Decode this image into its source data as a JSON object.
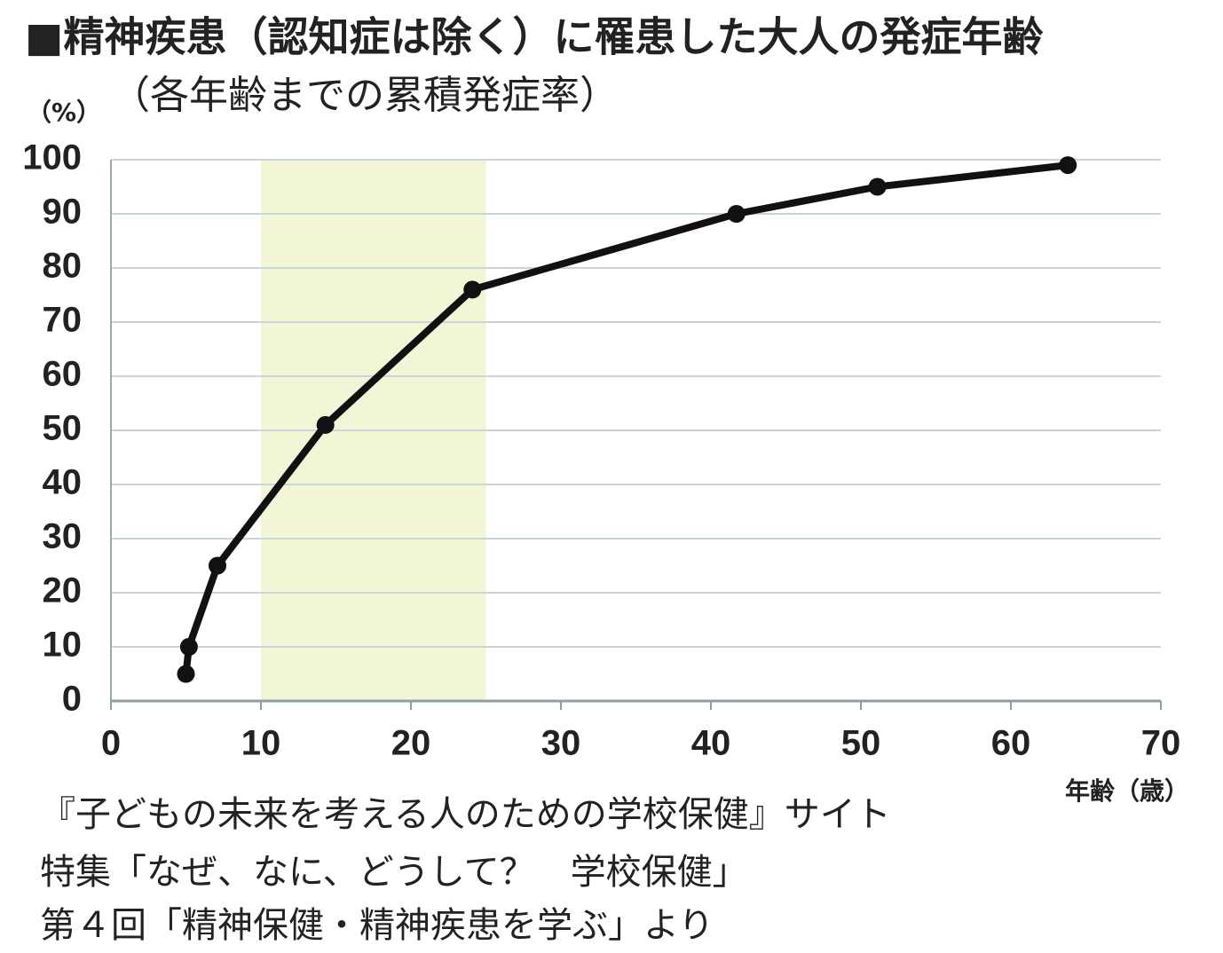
{
  "chart_data": {
    "type": "line",
    "title": "■精神疾患（認知症は除く）に罹患した大人の発症年齢",
    "subtitle": "（各年齢までの累積発症率）",
    "y_label": "（%）",
    "x_label": "年齢（歳）",
    "x": [
      5,
      5.2,
      7.1,
      14.3,
      24.1,
      41.7,
      51.1,
      63.8
    ],
    "values": [
      5,
      10,
      25,
      51,
      76,
      90,
      95,
      99
    ],
    "color": "#111111",
    "xlim": [
      0,
      70
    ],
    "xticks": [
      0,
      10,
      20,
      30,
      40,
      50,
      60,
      70
    ],
    "ylim": [
      0,
      100
    ],
    "yticks": [
      0,
      10,
      20,
      30,
      40,
      50,
      60,
      70,
      80,
      90,
      100
    ],
    "grid": true,
    "highlight_x": [
      10,
      25
    ],
    "highlight_color": "#f3f6d6",
    "source": [
      "『子どもの未来を考える人のための学校保健』サイト",
      "特集「なぜ、なに、どうして？　学校保健」",
      "第４回「精神保健・精神疾患を学ぶ」より"
    ]
  }
}
